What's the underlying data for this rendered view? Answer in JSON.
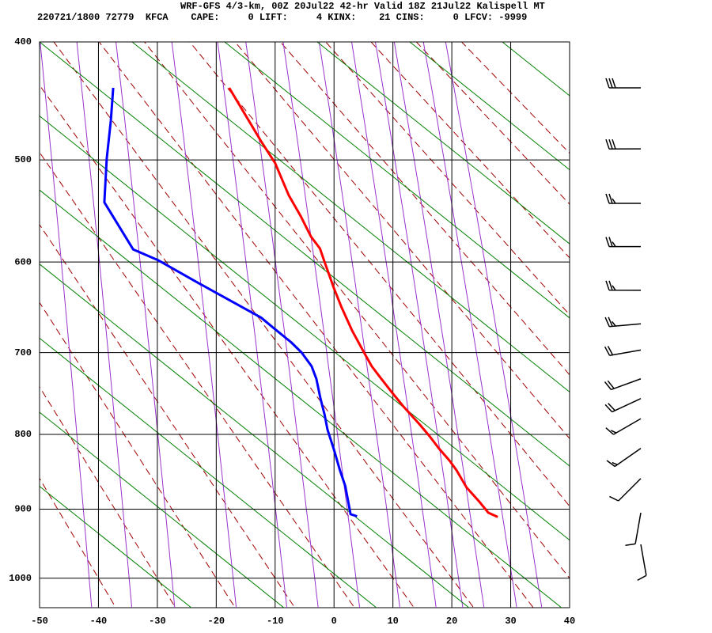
{
  "chart_data": {
    "type": "stuve",
    "title": "WRF-GFS 4/3-km, 00Z 20Jul22 42-hr Valid 18Z 21Jul22 Kalispell MT",
    "subtitle": "220721/1800 72779  KFCA    CAPE:     0 LIFT:     4 KINX:    21 CINS:     0 LFCV: -9999",
    "xlim": [
      -50,
      40
    ],
    "xticks": [
      -50,
      -40,
      -30,
      -20,
      -10,
      0,
      10,
      20,
      30,
      40
    ],
    "ylim": [
      1045,
      400
    ],
    "yticks": [
      400,
      500,
      600,
      700,
      800,
      900,
      1000
    ],
    "y_scale_exponent": 0.286,
    "grid": true,
    "series": [
      {
        "color": "#ff0000",
        "values": [
          911,
          905,
          889,
          870,
          847,
          834,
          818,
          802,
          787,
          765,
          749,
          729,
          716,
          700,
          675,
          649,
          628,
          600,
          586,
          574,
          553,
          533,
          503,
          483,
          437
        ],
        "x": [
          27.8,
          26.2,
          24.6,
          22.5,
          20.8,
          19.6,
          17.8,
          16.2,
          14.5,
          11.8,
          10.0,
          7.8,
          6.4,
          5.1,
          3.1,
          1.3,
          0.0,
          -1.6,
          -2.4,
          -3.9,
          -5.7,
          -7.7,
          -10.0,
          -12.4,
          -17.8
        ]
      },
      {
        "color": "#0000ff",
        "values": [
          910,
          907,
          889,
          868,
          847,
          820,
          794,
          775,
          755,
          731,
          716,
          700,
          688,
          671,
          660,
          622,
          598,
          587,
          540,
          499,
          465,
          437
        ],
        "x": [
          3.9,
          2.8,
          2.4,
          1.9,
          1.0,
          0.0,
          -1.1,
          -1.6,
          -2.3,
          -3.0,
          -3.8,
          -5.5,
          -7.3,
          -10.4,
          -12.4,
          -23.1,
          -29.9,
          -34.1,
          -39.0,
          -38.6,
          -37.9,
          -37.5
        ]
      }
    ],
    "wind": {
      "pressure": [
        437,
        490,
        541,
        584,
        630,
        667,
        697,
        731,
        755,
        780,
        818,
        858,
        905,
        950
      ],
      "speed": [
        30,
        30,
        25,
        25,
        25,
        25,
        20,
        20,
        20,
        15,
        15,
        10,
        10,
        10
      ],
      "direction": [
        270,
        270,
        270,
        270,
        270,
        265,
        260,
        250,
        245,
        240,
        235,
        225,
        190,
        170
      ]
    }
  }
}
